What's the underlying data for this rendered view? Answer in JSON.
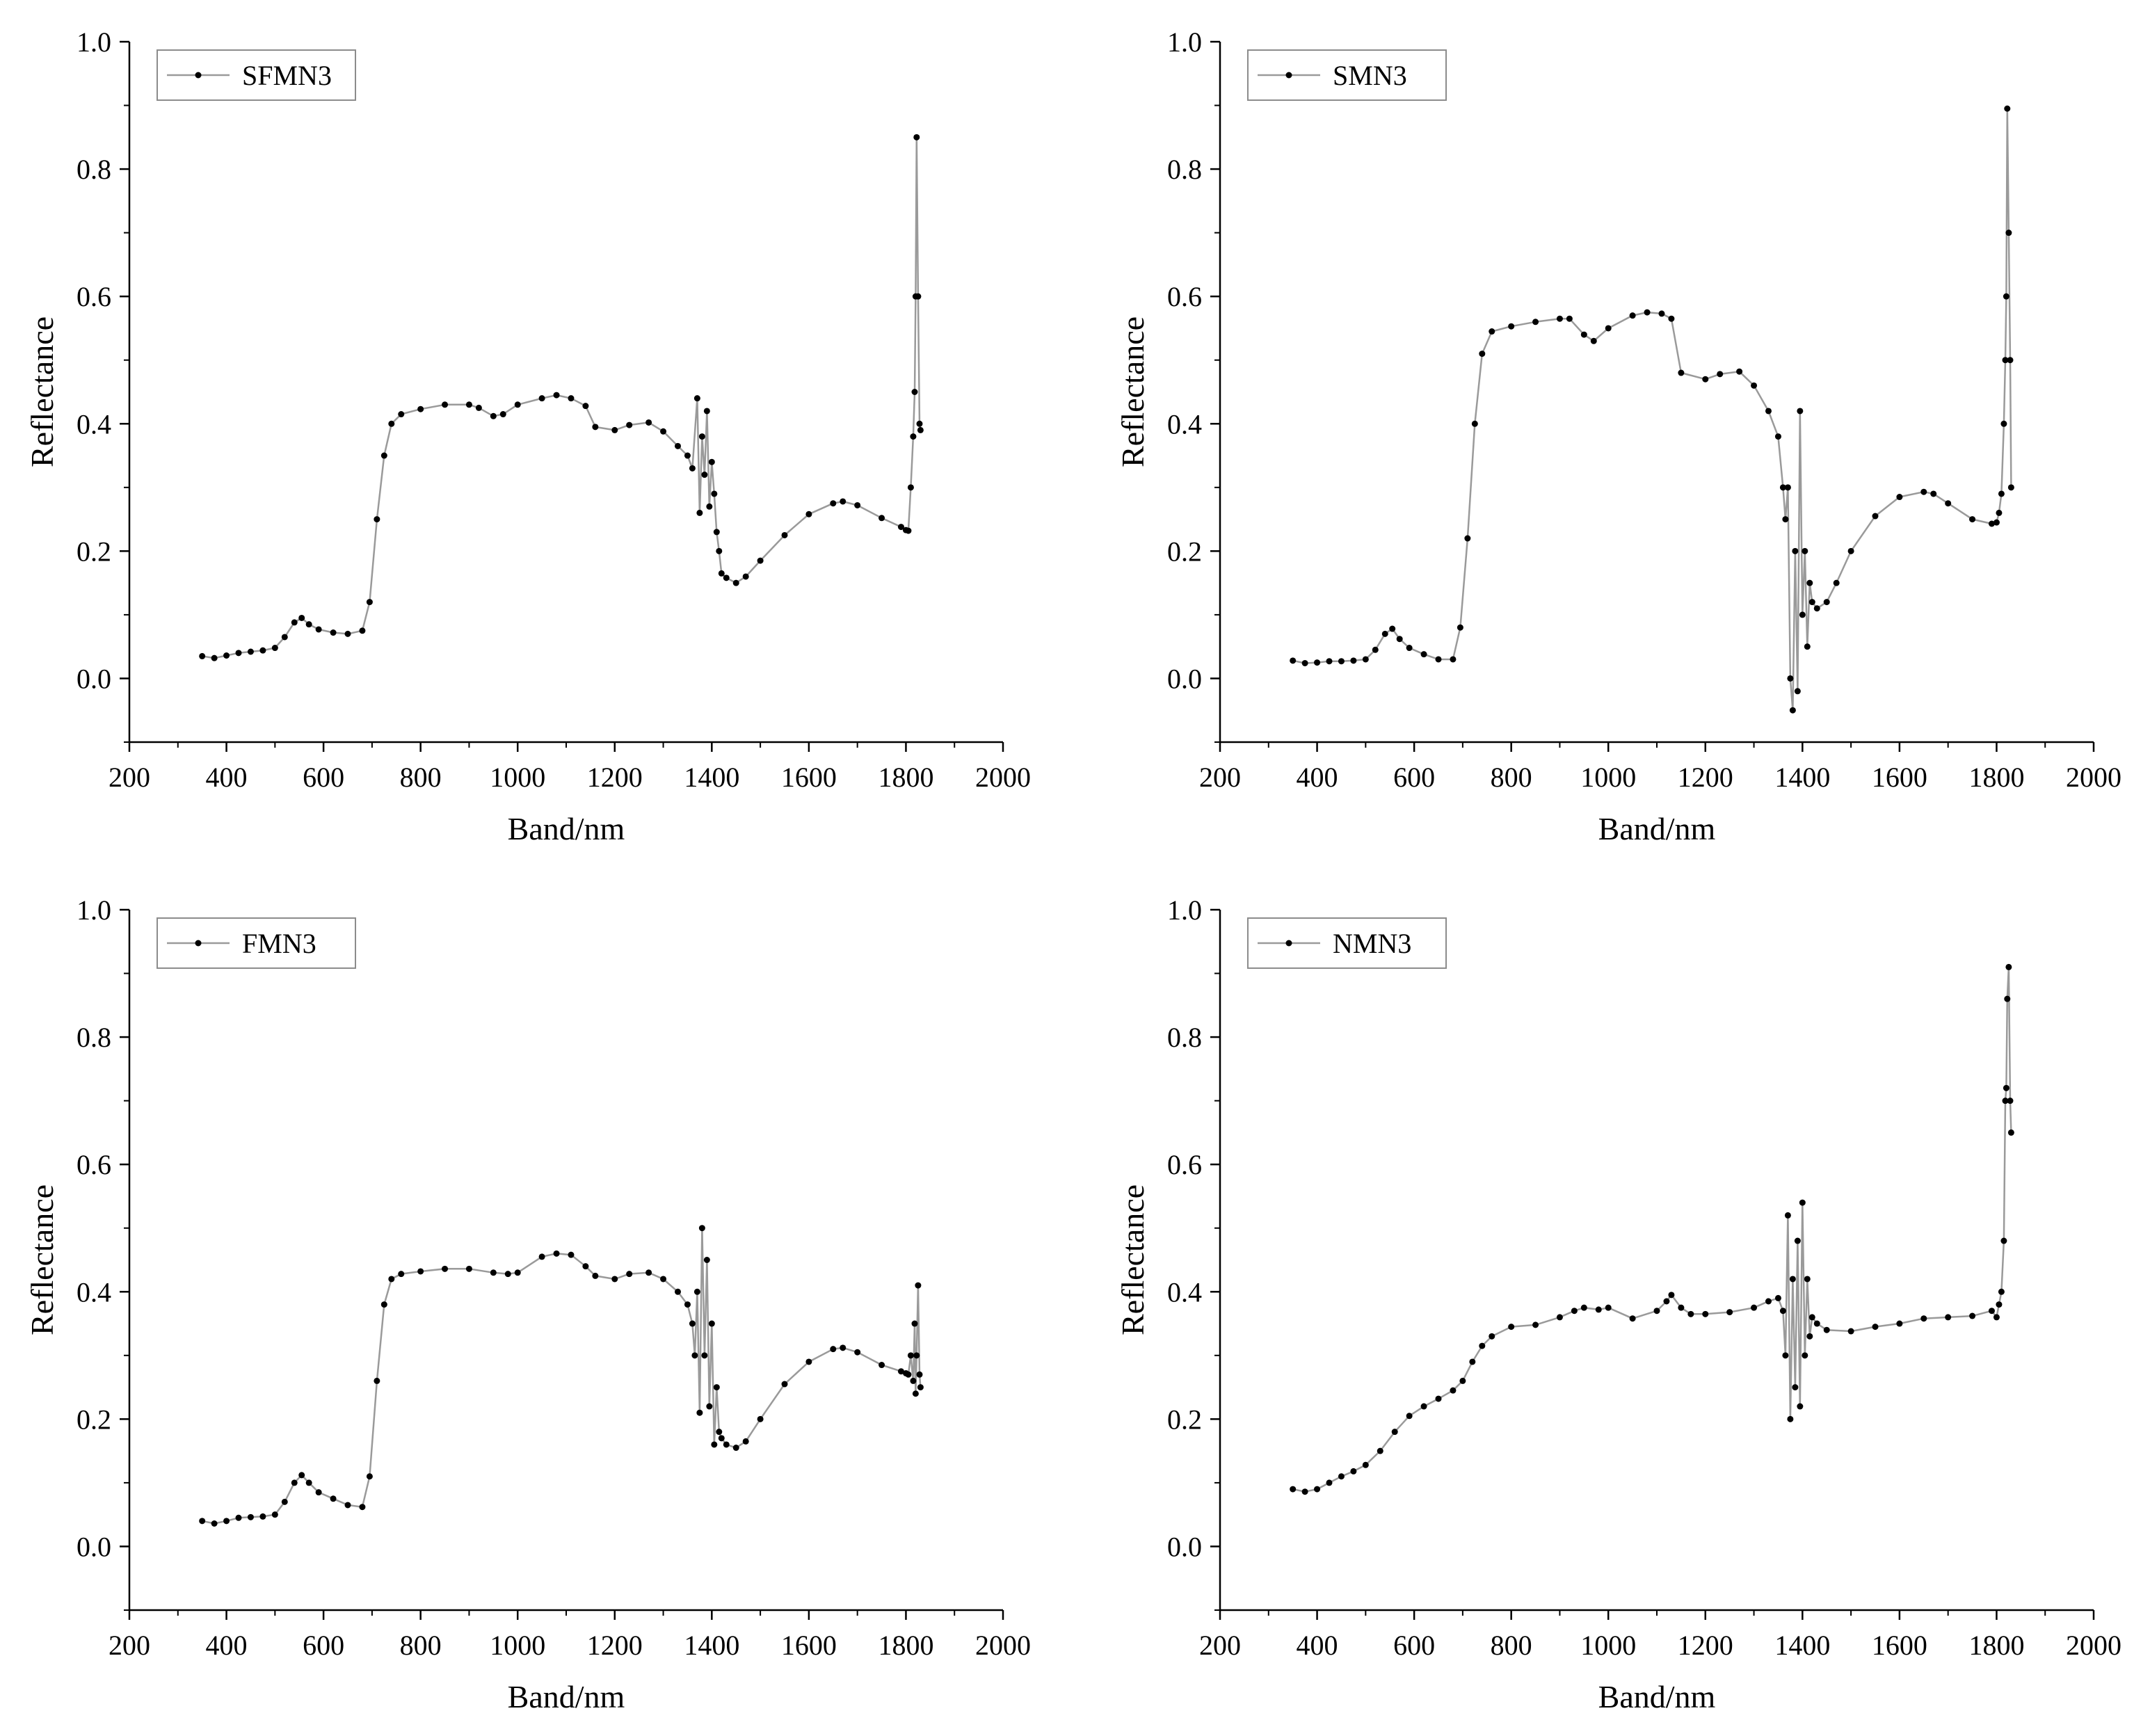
{
  "figure": {
    "colors": {
      "line": "#9a9a9a",
      "marker": "#000000",
      "axis": "#000000",
      "legend_border": "#8c8c8c",
      "background": "#ffffff"
    }
  },
  "chart_data": [
    {
      "type": "line",
      "series": [
        {
          "name": "SFMN3",
          "x": [
            350,
            375,
            400,
            425,
            450,
            475,
            500,
            520,
            540,
            555,
            570,
            590,
            620,
            650,
            680,
            695,
            710,
            725,
            740,
            760,
            800,
            850,
            900,
            920,
            950,
            970,
            1000,
            1050,
            1080,
            1110,
            1140,
            1160,
            1200,
            1230,
            1270,
            1300,
            1330,
            1350,
            1360,
            1370,
            1375,
            1380,
            1385,
            1390,
            1395,
            1400,
            1405,
            1410,
            1415,
            1420,
            1430,
            1450,
            1470,
            1500,
            1550,
            1600,
            1650,
            1670,
            1700,
            1750,
            1790,
            1800,
            1805,
            1810,
            1815,
            1818,
            1820,
            1822,
            1825,
            1828,
            1830
          ],
          "y": [
            0.035,
            0.032,
            0.036,
            0.04,
            0.042,
            0.044,
            0.048,
            0.065,
            0.088,
            0.095,
            0.085,
            0.077,
            0.072,
            0.07,
            0.075,
            0.12,
            0.25,
            0.35,
            0.4,
            0.415,
            0.423,
            0.43,
            0.43,
            0.425,
            0.412,
            0.415,
            0.43,
            0.44,
            0.445,
            0.44,
            0.428,
            0.395,
            0.39,
            0.398,
            0.402,
            0.388,
            0.365,
            0.35,
            0.33,
            0.44,
            0.26,
            0.38,
            0.32,
            0.42,
            0.27,
            0.34,
            0.29,
            0.23,
            0.2,
            0.165,
            0.158,
            0.15,
            0.16,
            0.185,
            0.225,
            0.258,
            0.275,
            0.278,
            0.272,
            0.252,
            0.238,
            0.233,
            0.232,
            0.3,
            0.38,
            0.45,
            0.6,
            0.85,
            0.6,
            0.4,
            0.39
          ]
        }
      ],
      "title": "",
      "xlabel": "Band/nm",
      "ylabel": "Reflectance",
      "xlim": [
        200,
        2000
      ],
      "ylim": [
        -0.1,
        1.0
      ],
      "xticks": [
        200,
        400,
        600,
        800,
        1000,
        1200,
        1400,
        1600,
        1800,
        2000
      ],
      "xtick_labels": [
        "200",
        "400",
        "600",
        "800",
        "1000",
        "1200",
        "1400",
        "1600",
        "1800",
        "2000"
      ],
      "yticks": [
        0.0,
        0.2,
        0.4,
        0.6,
        0.8,
        1.0
      ],
      "ytick_labels": [
        "0.0",
        "0.2",
        "0.4",
        "0.6",
        "0.8",
        "1.0"
      ],
      "legend": "top-left",
      "grid": false
    },
    {
      "type": "line",
      "series": [
        {
          "name": "SMN3",
          "x": [
            350,
            375,
            400,
            425,
            450,
            475,
            500,
            520,
            540,
            555,
            570,
            590,
            620,
            650,
            680,
            695,
            710,
            725,
            740,
            760,
            800,
            850,
            900,
            920,
            950,
            970,
            1000,
            1050,
            1080,
            1110,
            1130,
            1150,
            1200,
            1230,
            1270,
            1300,
            1330,
            1350,
            1360,
            1365,
            1370,
            1375,
            1380,
            1385,
            1390,
            1395,
            1400,
            1405,
            1410,
            1415,
            1420,
            1430,
            1450,
            1470,
            1500,
            1550,
            1600,
            1650,
            1670,
            1700,
            1750,
            1790,
            1800,
            1805,
            1810,
            1815,
            1818,
            1820,
            1822,
            1825,
            1828,
            1830
          ],
          "y": [
            0.028,
            0.024,
            0.025,
            0.027,
            0.027,
            0.028,
            0.03,
            0.045,
            0.07,
            0.078,
            0.062,
            0.048,
            0.038,
            0.03,
            0.03,
            0.08,
            0.22,
            0.4,
            0.51,
            0.545,
            0.553,
            0.56,
            0.565,
            0.565,
            0.54,
            0.53,
            0.55,
            0.57,
            0.575,
            0.573,
            0.565,
            0.48,
            0.47,
            0.478,
            0.482,
            0.46,
            0.42,
            0.38,
            0.3,
            0.25,
            0.3,
            0.0,
            -0.05,
            0.2,
            -0.02,
            0.42,
            0.1,
            0.2,
            0.05,
            0.15,
            0.12,
            0.11,
            0.12,
            0.15,
            0.2,
            0.255,
            0.285,
            0.293,
            0.29,
            0.275,
            0.25,
            0.243,
            0.245,
            0.26,
            0.29,
            0.4,
            0.5,
            0.6,
            0.895,
            0.7,
            0.5,
            0.3
          ]
        }
      ],
      "title": "",
      "xlabel": "Band/nm",
      "ylabel": "Reflectance",
      "xlim": [
        200,
        2000
      ],
      "ylim": [
        -0.1,
        1.0
      ],
      "xticks": [
        200,
        400,
        600,
        800,
        1000,
        1200,
        1400,
        1600,
        1800,
        2000
      ],
      "xtick_labels": [
        "200",
        "400",
        "600",
        "800",
        "1000",
        "1200",
        "1400",
        "1600",
        "1800",
        "2000"
      ],
      "yticks": [
        0.0,
        0.2,
        0.4,
        0.6,
        0.8,
        1.0
      ],
      "ytick_labels": [
        "0.0",
        "0.2",
        "0.4",
        "0.6",
        "0.8",
        "1.0"
      ],
      "legend": "top-left",
      "grid": false
    },
    {
      "type": "line",
      "series": [
        {
          "name": "FMN3",
          "x": [
            350,
            375,
            400,
            425,
            450,
            475,
            500,
            520,
            540,
            555,
            570,
            590,
            620,
            650,
            680,
            695,
            710,
            725,
            740,
            760,
            800,
            850,
            900,
            950,
            980,
            1000,
            1050,
            1080,
            1110,
            1140,
            1160,
            1200,
            1230,
            1270,
            1300,
            1330,
            1350,
            1360,
            1365,
            1370,
            1375,
            1380,
            1385,
            1390,
            1395,
            1400,
            1405,
            1410,
            1415,
            1420,
            1430,
            1450,
            1470,
            1500,
            1550,
            1600,
            1650,
            1670,
            1700,
            1750,
            1790,
            1800,
            1805,
            1810,
            1815,
            1818,
            1820,
            1822,
            1825,
            1828,
            1830
          ],
          "y": [
            0.04,
            0.036,
            0.04,
            0.045,
            0.046,
            0.047,
            0.05,
            0.07,
            0.1,
            0.112,
            0.1,
            0.085,
            0.075,
            0.065,
            0.062,
            0.11,
            0.26,
            0.38,
            0.42,
            0.428,
            0.432,
            0.436,
            0.436,
            0.43,
            0.428,
            0.43,
            0.455,
            0.46,
            0.458,
            0.44,
            0.425,
            0.42,
            0.428,
            0.43,
            0.42,
            0.4,
            0.38,
            0.35,
            0.3,
            0.4,
            0.21,
            0.5,
            0.3,
            0.45,
            0.22,
            0.35,
            0.16,
            0.25,
            0.18,
            0.17,
            0.16,
            0.155,
            0.165,
            0.2,
            0.255,
            0.29,
            0.31,
            0.312,
            0.305,
            0.285,
            0.275,
            0.272,
            0.27,
            0.3,
            0.26,
            0.35,
            0.24,
            0.3,
            0.41,
            0.27,
            0.25
          ]
        }
      ],
      "title": "",
      "xlabel": "Band/nm",
      "ylabel": "Reflectance",
      "xlim": [
        200,
        2000
      ],
      "ylim": [
        -0.1,
        1.0
      ],
      "xticks": [
        200,
        400,
        600,
        800,
        1000,
        1200,
        1400,
        1600,
        1800,
        2000
      ],
      "xtick_labels": [
        "200",
        "400",
        "600",
        "800",
        "1000",
        "1200",
        "1400",
        "1600",
        "1800",
        "2000"
      ],
      "yticks": [
        0.0,
        0.2,
        0.4,
        0.6,
        0.8,
        1.0
      ],
      "ytick_labels": [
        "0.0",
        "0.2",
        "0.4",
        "0.6",
        "0.8",
        "1.0"
      ],
      "legend": "top-left",
      "grid": false
    },
    {
      "type": "line",
      "series": [
        {
          "name": "NMN3",
          "x": [
            350,
            375,
            400,
            425,
            450,
            475,
            500,
            530,
            560,
            590,
            620,
            650,
            680,
            700,
            720,
            740,
            760,
            800,
            850,
            900,
            930,
            950,
            980,
            1000,
            1050,
            1100,
            1120,
            1130,
            1150,
            1170,
            1200,
            1250,
            1300,
            1330,
            1350,
            1360,
            1365,
            1370,
            1375,
            1380,
            1385,
            1390,
            1395,
            1400,
            1405,
            1410,
            1415,
            1420,
            1430,
            1450,
            1500,
            1550,
            1600,
            1650,
            1700,
            1750,
            1790,
            1800,
            1805,
            1810,
            1815,
            1818,
            1820,
            1822,
            1825,
            1828,
            1830
          ],
          "y": [
            0.09,
            0.086,
            0.09,
            0.1,
            0.11,
            0.118,
            0.128,
            0.15,
            0.18,
            0.205,
            0.22,
            0.232,
            0.245,
            0.26,
            0.29,
            0.315,
            0.33,
            0.345,
            0.348,
            0.36,
            0.37,
            0.375,
            0.372,
            0.375,
            0.358,
            0.37,
            0.385,
            0.395,
            0.375,
            0.365,
            0.365,
            0.368,
            0.375,
            0.385,
            0.39,
            0.37,
            0.3,
            0.52,
            0.2,
            0.42,
            0.25,
            0.48,
            0.22,
            0.54,
            0.3,
            0.42,
            0.33,
            0.36,
            0.35,
            0.34,
            0.338,
            0.345,
            0.35,
            0.358,
            0.36,
            0.362,
            0.37,
            0.36,
            0.38,
            0.4,
            0.48,
            0.7,
            0.72,
            0.86,
            0.91,
            0.7,
            0.65
          ]
        }
      ],
      "title": "",
      "xlabel": "Band/nm",
      "ylabel": "Reflectance",
      "xlim": [
        200,
        2000
      ],
      "ylim": [
        -0.1,
        1.0
      ],
      "xticks": [
        200,
        400,
        600,
        800,
        1000,
        1200,
        1400,
        1600,
        1800,
        2000
      ],
      "xtick_labels": [
        "200",
        "400",
        "600",
        "800",
        "1000",
        "1200",
        "1400",
        "1600",
        "1800",
        "2000"
      ],
      "yticks": [
        0.0,
        0.2,
        0.4,
        0.6,
        0.8,
        1.0
      ],
      "ytick_labels": [
        "0.0",
        "0.2",
        "0.4",
        "0.6",
        "0.8",
        "1.0"
      ],
      "legend": "top-left",
      "grid": false
    }
  ]
}
